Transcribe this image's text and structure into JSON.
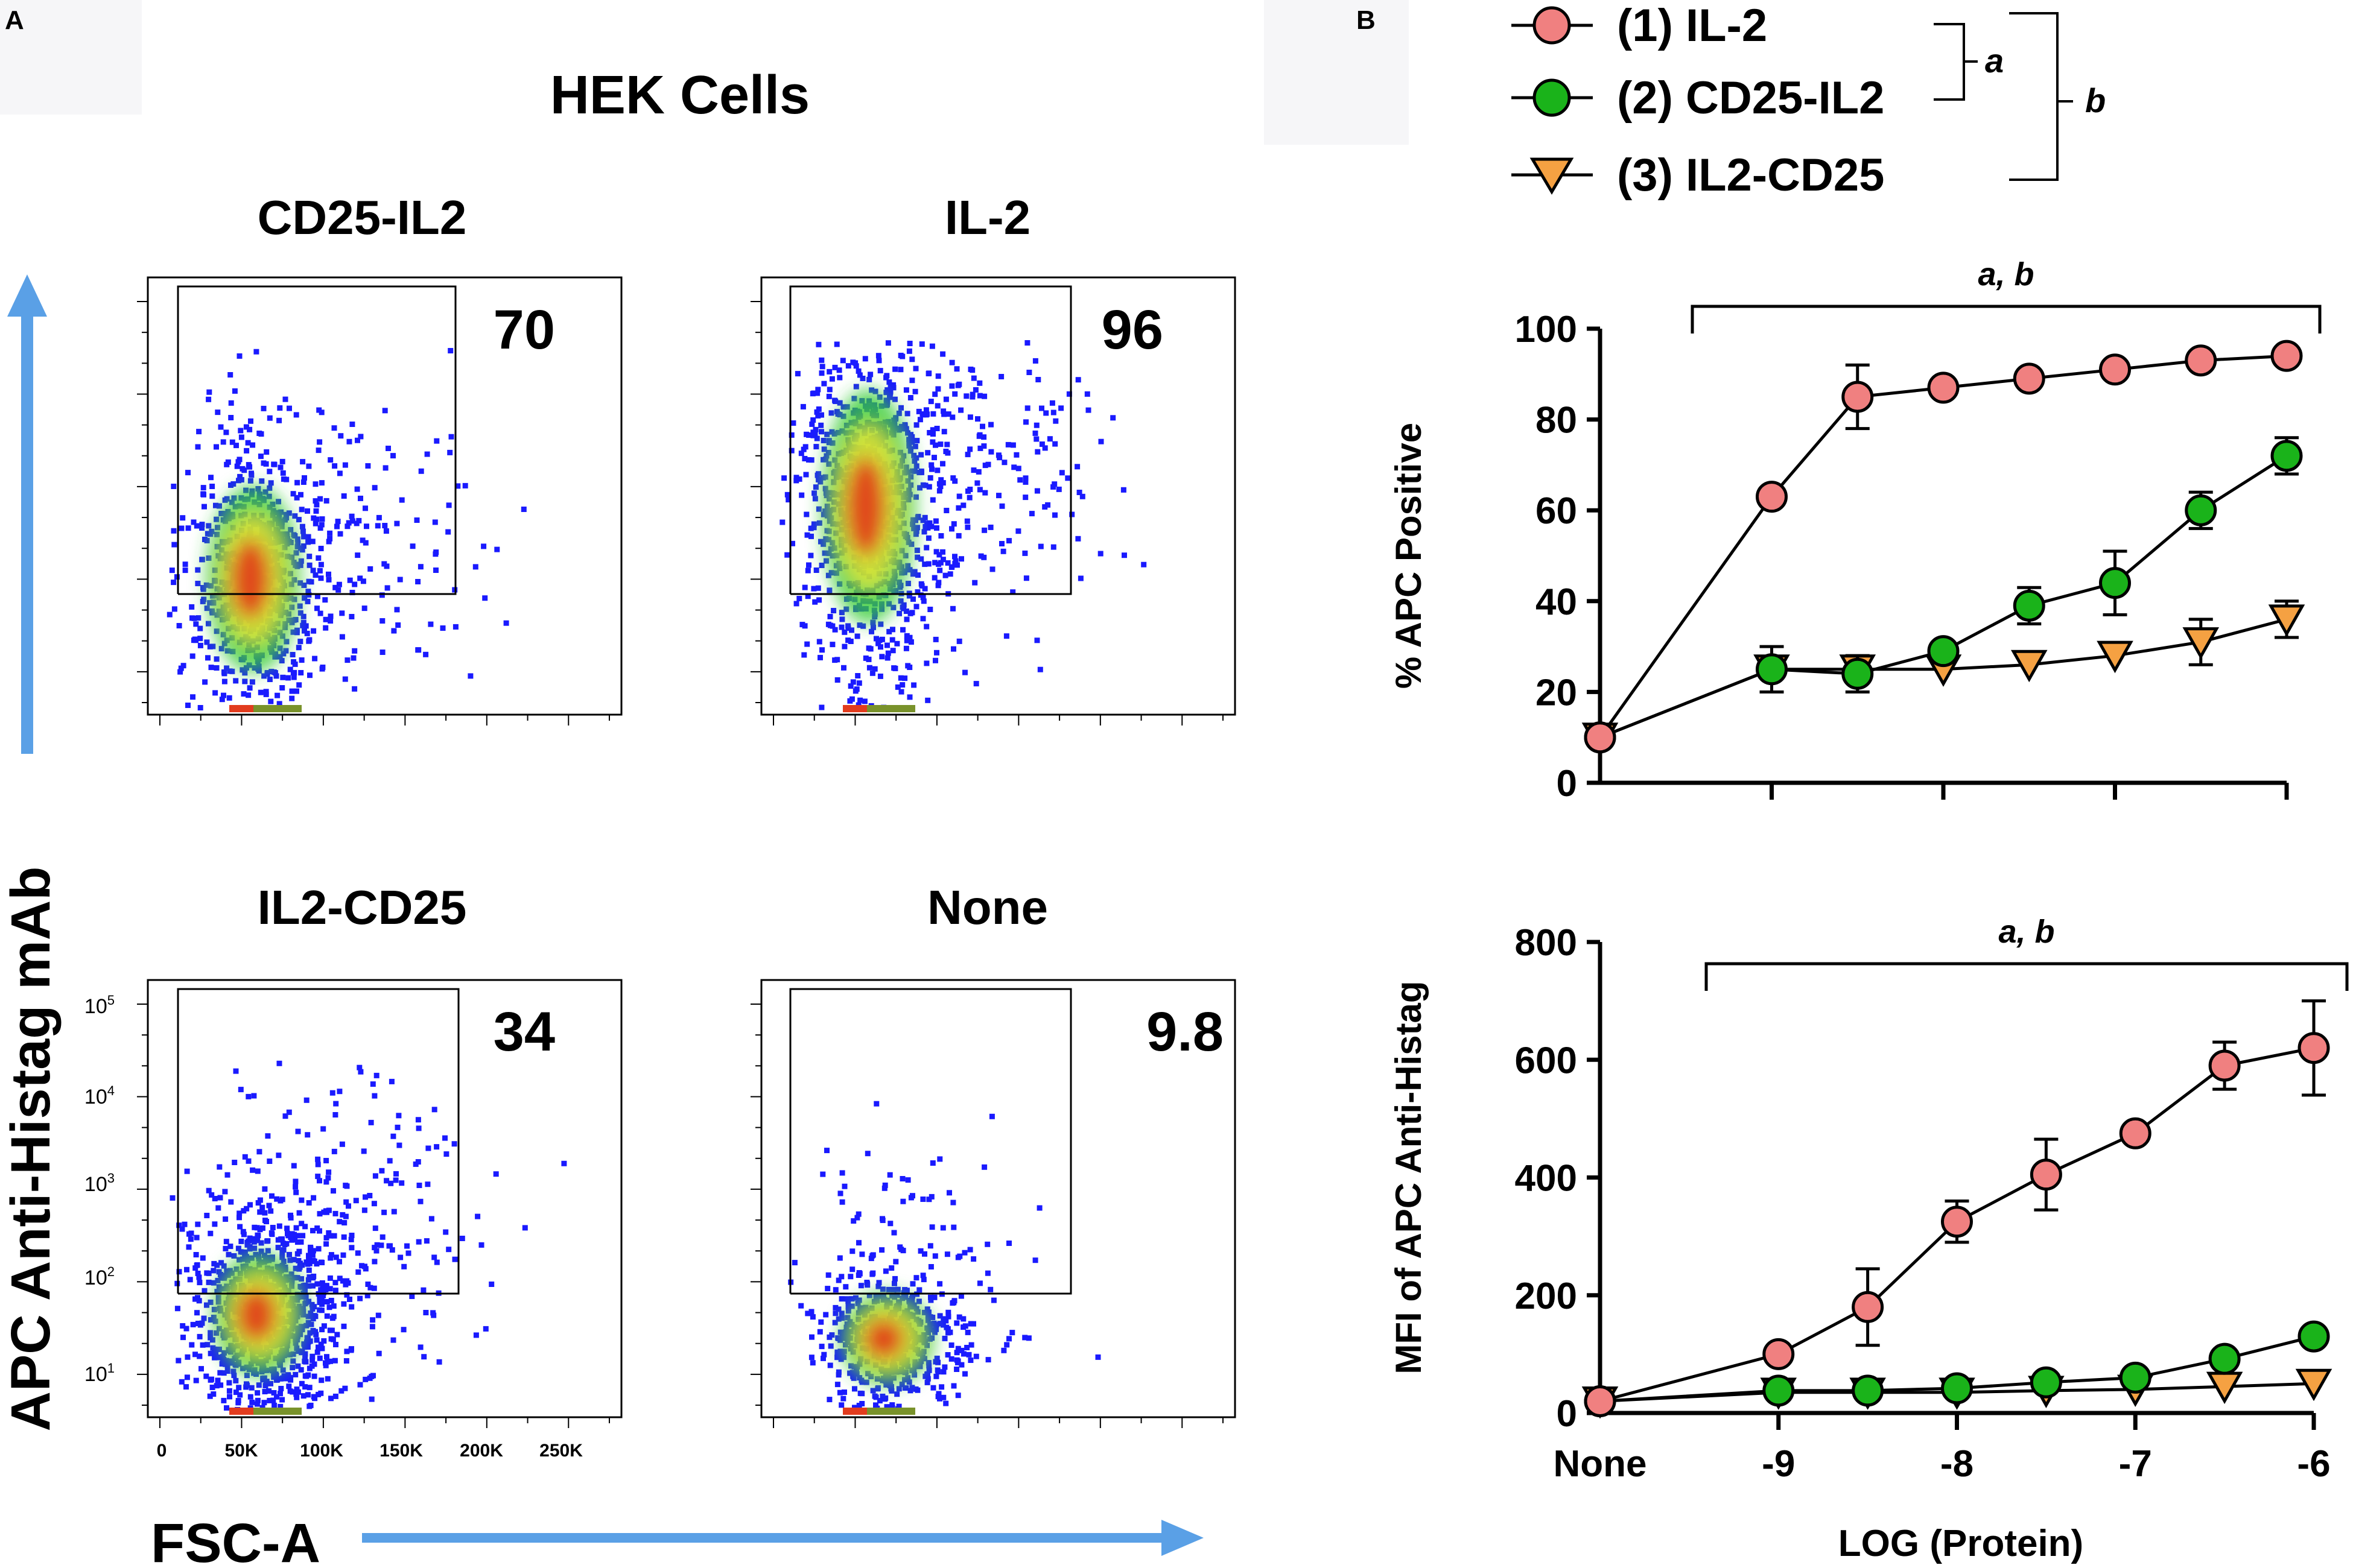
{
  "panel_a": {
    "label": "A",
    "title": "HEK Cells",
    "y_axis_label": "APC Anti-Histag mAb",
    "x_axis_label": "FSC-A",
    "arrow_color": "#5aa0e6",
    "x_tick_labels": [
      "0",
      "50K",
      "100K",
      "150K",
      "200K",
      "250K"
    ],
    "y_tick_labels": [
      {
        "base": "10",
        "exp": "1"
      },
      {
        "base": "10",
        "exp": "2"
      },
      {
        "base": "10",
        "exp": "3"
      },
      {
        "base": "10",
        "exp": "4"
      },
      {
        "base": "10",
        "exp": "5"
      }
    ],
    "plots": [
      {
        "title": "CD25-IL2",
        "percent": "70"
      },
      {
        "title": "IL-2",
        "percent": "96"
      },
      {
        "title": "IL2-CD25",
        "percent": "34"
      },
      {
        "title": "None",
        "percent": "9.8"
      }
    ]
  },
  "panel_b": {
    "label": "B",
    "legend": {
      "items": [
        {
          "label": "(1) IL-2",
          "marker": "circle",
          "color": "#f08080"
        },
        {
          "label": "(2) CD25-IL2",
          "marker": "circle",
          "color": "#1ab31a"
        },
        {
          "label": "(3) IL2-CD25",
          "marker": "triangle-down",
          "color": "#f5a142"
        }
      ],
      "bracket_a": "a",
      "bracket_b": "b"
    },
    "x_axis_label": "LOG (Protein)",
    "significance": "a, b"
  },
  "chart_data": [
    {
      "type": "line",
      "title": "",
      "ylabel": "% APC Positive",
      "xlabel": "",
      "ylim": [
        0,
        100
      ],
      "y_ticks": [
        0,
        20,
        40,
        60,
        80,
        100
      ],
      "x_categories": [
        "None",
        "-9",
        "-8",
        "-7",
        "-6"
      ],
      "x": [
        -10,
        -9,
        -8.5,
        -8,
        -7.5,
        -7,
        -6.5,
        -6
      ],
      "significance": "a, b",
      "series": [
        {
          "name": "(1) IL-2",
          "values": [
            10,
            63,
            85,
            87,
            89,
            91,
            93,
            94
          ],
          "errors": [
            0,
            0,
            7,
            0,
            0,
            0,
            0,
            0
          ]
        },
        {
          "name": "(2) CD25-IL2",
          "values": [
            10,
            25,
            24,
            29,
            39,
            44,
            60,
            72
          ],
          "errors": [
            0,
            5,
            4,
            0,
            4,
            7,
            4,
            4
          ]
        },
        {
          "name": "(3) IL2-CD25",
          "values": [
            10,
            25,
            25,
            25,
            26,
            28,
            31,
            36
          ],
          "errors": [
            0,
            0,
            0,
            0,
            0,
            0,
            5,
            4
          ]
        }
      ]
    },
    {
      "type": "line",
      "title": "",
      "ylabel": "MFI of APC Anti-Histag",
      "xlabel": "LOG (Protein)",
      "ylim": [
        0,
        800
      ],
      "y_ticks": [
        0,
        200,
        400,
        600,
        800
      ],
      "x_categories": [
        "None",
        "-9",
        "-8",
        "-7",
        "-6"
      ],
      "x": [
        -10,
        -9,
        -8.5,
        -8,
        -7.5,
        -7,
        -6.5,
        -6
      ],
      "significance": "a, b",
      "series": [
        {
          "name": "(1) IL-2",
          "values": [
            20,
            100,
            180,
            325,
            405,
            475,
            590,
            620
          ],
          "errors": [
            0,
            0,
            65,
            35,
            60,
            0,
            40,
            80
          ]
        },
        {
          "name": "(2) CD25-IL2",
          "values": [
            20,
            38,
            38,
            42,
            52,
            60,
            92,
            130
          ],
          "errors": [
            0,
            0,
            0,
            0,
            0,
            0,
            0,
            0
          ]
        },
        {
          "name": "(3) IL2-CD25",
          "values": [
            20,
            35,
            35,
            35,
            38,
            40,
            45,
            50
          ],
          "errors": [
            0,
            0,
            0,
            0,
            0,
            0,
            0,
            0
          ]
        }
      ]
    }
  ]
}
